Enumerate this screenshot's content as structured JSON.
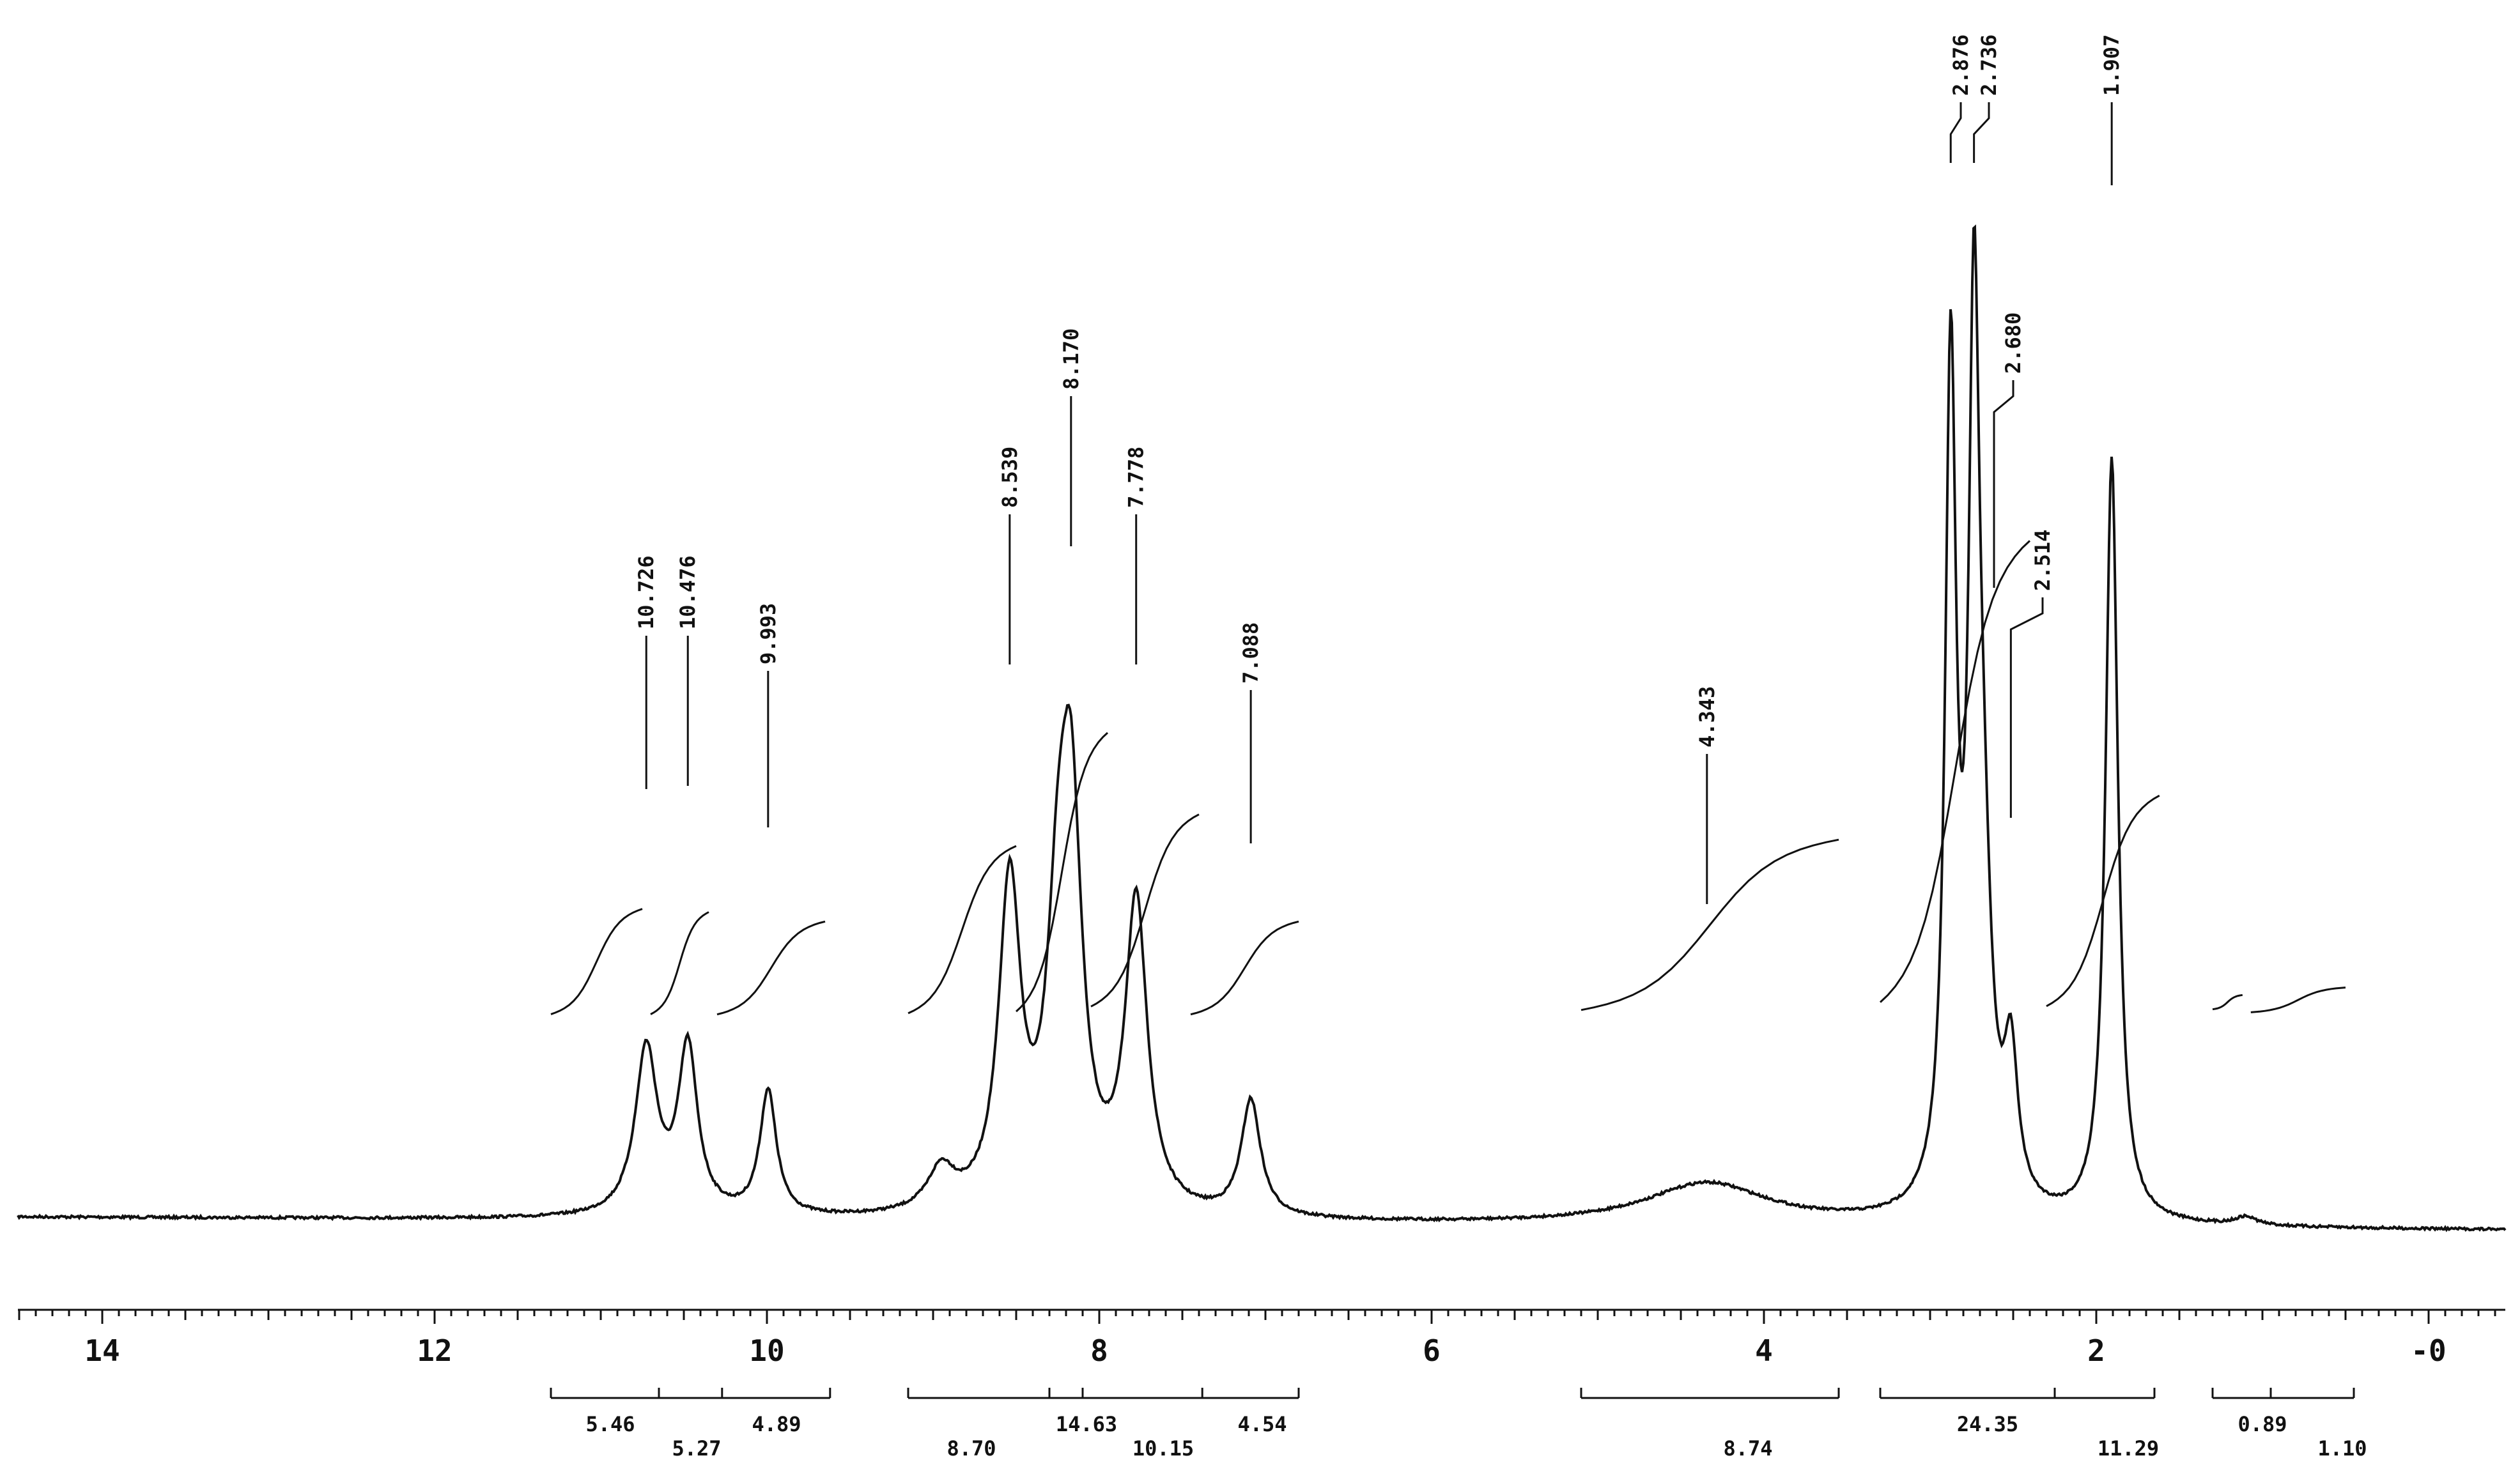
{
  "chart_data": {
    "type": "line",
    "title": "",
    "xlabel": "",
    "ylabel": "",
    "x_axis": {
      "reversed": true,
      "xlim": [
        14.5,
        -0.4
      ],
      "major_ticks": [
        14,
        12,
        10,
        8,
        6,
        4,
        2,
        0
      ],
      "tick_labels": [
        "14",
        "12",
        "10",
        "8",
        "6",
        "4",
        "2",
        "-0"
      ]
    },
    "grid": false,
    "series": [
      {
        "baseline": 0.03,
        "peaks": [
          {
            "ppm": 10.726,
            "height": 0.2,
            "width": 0.08
          },
          {
            "ppm": 10.476,
            "height": 0.2,
            "width": 0.07
          },
          {
            "ppm": 9.993,
            "height": 0.15,
            "width": 0.06
          },
          {
            "ppm": 8.539,
            "height": 0.39,
            "width": 0.08
          },
          {
            "ppm": 8.25,
            "height": 0.27,
            "width": 0.08
          },
          {
            "ppm": 8.17,
            "height": 0.44,
            "width": 0.08
          },
          {
            "ppm": 7.778,
            "height": 0.37,
            "width": 0.08
          },
          {
            "ppm": 7.088,
            "height": 0.14,
            "width": 0.07
          },
          {
            "ppm": 4.343,
            "height": 0.05,
            "width": 0.45
          },
          {
            "ppm": 2.876,
            "height": 1.0,
            "width": 0.04
          },
          {
            "ppm": 2.736,
            "height": 0.96,
            "width": 0.04
          },
          {
            "ppm": 2.68,
            "height": 0.3,
            "width": 0.06
          },
          {
            "ppm": 2.514,
            "height": 0.17,
            "width": 0.05
          },
          {
            "ppm": 1.907,
            "height": 0.92,
            "width": 0.045
          },
          {
            "ppm": 1.1,
            "height": 0.01,
            "width": 0.08
          },
          {
            "ppm": 8.95,
            "height": 0.05,
            "width": 0.1
          }
        ]
      }
    ],
    "peak_labels": [
      {
        "label": "10.726",
        "ppm": 10.726
      },
      {
        "label": "10.476",
        "ppm": 10.476
      },
      {
        "label": "9.993",
        "ppm": 9.993
      },
      {
        "label": "8.539",
        "ppm": 8.539
      },
      {
        "label": "8.170",
        "ppm": 8.17
      },
      {
        "label": "7.778",
        "ppm": 7.778
      },
      {
        "label": "7.088",
        "ppm": 7.088
      },
      {
        "label": "4.343",
        "ppm": 4.343
      },
      {
        "label": "2.876",
        "ppm": 2.876
      },
      {
        "label": "2.736",
        "ppm": 2.736
      },
      {
        "label": "2.680",
        "ppm": 2.68
      },
      {
        "label": "2.514",
        "ppm": 2.514
      },
      {
        "label": "1.907",
        "ppm": 1.907
      }
    ],
    "integrals": [
      {
        "from_ppm": 11.3,
        "to_ppm": 10.65,
        "value": "5.46"
      },
      {
        "from_ppm": 10.65,
        "to_ppm": 10.27,
        "value": "5.27"
      },
      {
        "from_ppm": 10.27,
        "to_ppm": 9.62,
        "value": "4.89"
      },
      {
        "from_ppm": 9.15,
        "to_ppm": 8.3,
        "value": "8.70"
      },
      {
        "from_ppm": 8.3,
        "to_ppm": 8.1,
        "value": "14.63"
      },
      {
        "from_ppm": 8.0,
        "to_ppm": 7.38,
        "value": "10.15"
      },
      {
        "from_ppm": 7.38,
        "to_ppm": 6.8,
        "value": "4.54"
      },
      {
        "from_ppm": 5.1,
        "to_ppm": 3.55,
        "value": "8.74"
      },
      {
        "from_ppm": 3.3,
        "to_ppm": 2.25,
        "value": "24.35"
      },
      {
        "from_ppm": 2.25,
        "to_ppm": 1.65,
        "value": "11.29"
      },
      {
        "from_ppm": 1.3,
        "to_ppm": 0.95,
        "value": "0.89"
      },
      {
        "from_ppm": 0.95,
        "to_ppm": 0.45,
        "value": "1.10"
      }
    ]
  }
}
